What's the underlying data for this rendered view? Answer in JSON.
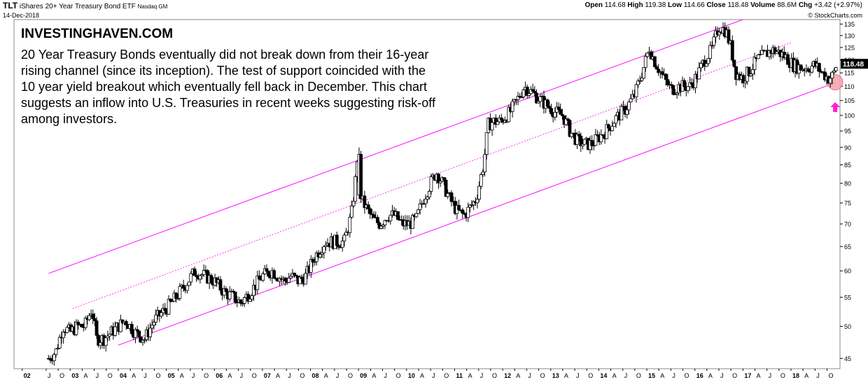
{
  "header": {
    "symbol": "TLT",
    "name": "iShares 20+ Year Treasury Bond ETF",
    "exchange": "Nasdaq GM",
    "date": "14-Dec-2018",
    "open_label": "Open",
    "open": "114.68",
    "high_label": "High",
    "high": "119.38",
    "low_label": "Low",
    "low": "114.66",
    "close_label": "Close",
    "close": "118.48",
    "volume_label": "Volume",
    "volume": "88.6M",
    "chg_label": "Chg",
    "chg": "+3.42 (+2.97%)",
    "copyright": "© StockCharts.com"
  },
  "annotation": {
    "brand": "INVESTINGHAVEN.COM",
    "text": "20 Year Treasury Bonds eventually did not break down from their 16-year rising channel (since its inception). The test of support coincided with the 10 year yield breakout which eventually fell back in December. This chart suggests an inflow into U.S. Treasuries in recent weeks suggesting risk-off among investors."
  },
  "colors": {
    "channel": "#ff33ff",
    "highlight": "#f4a0a8",
    "arrow": "#ff1fcf",
    "price_badge": "#000000"
  },
  "chart_data": {
    "type": "candlestick",
    "y_scale": "log",
    "ylim": [
      43.5,
      137
    ],
    "xlim": [
      2002.55,
      2019.05
    ],
    "y_ticks": [
      45,
      50,
      55,
      60,
      65,
      70,
      75,
      80,
      85,
      90,
      95,
      100,
      105,
      110,
      115,
      120,
      125,
      130,
      135
    ],
    "x_ticks": [
      {
        "label": "02",
        "t": 2002.0
      },
      {
        "label": "J",
        "t": 2002.5
      },
      {
        "label": "O",
        "t": 2002.75
      },
      {
        "label": "03",
        "t": 2003.0
      },
      {
        "label": "A",
        "t": 2003.25
      },
      {
        "label": "J",
        "t": 2003.5
      },
      {
        "label": "O",
        "t": 2003.75
      },
      {
        "label": "04",
        "t": 2004.0
      },
      {
        "label": "A",
        "t": 2004.25
      },
      {
        "label": "J",
        "t": 2004.5
      },
      {
        "label": "O",
        "t": 2004.75
      },
      {
        "label": "05",
        "t": 2005.0
      },
      {
        "label": "A",
        "t": 2005.25
      },
      {
        "label": "J",
        "t": 2005.5
      },
      {
        "label": "O",
        "t": 2005.75
      },
      {
        "label": "06",
        "t": 2006.0
      },
      {
        "label": "A",
        "t": 2006.25
      },
      {
        "label": "J",
        "t": 2006.5
      },
      {
        "label": "O",
        "t": 2006.75
      },
      {
        "label": "07",
        "t": 2007.0
      },
      {
        "label": "A",
        "t": 2007.25
      },
      {
        "label": "J",
        "t": 2007.5
      },
      {
        "label": "O",
        "t": 2007.75
      },
      {
        "label": "08",
        "t": 2008.0
      },
      {
        "label": "A",
        "t": 2008.25
      },
      {
        "label": "J",
        "t": 2008.5
      },
      {
        "label": "O",
        "t": 2008.75
      },
      {
        "label": "09",
        "t": 2009.0
      },
      {
        "label": "A",
        "t": 2009.25
      },
      {
        "label": "J",
        "t": 2009.5
      },
      {
        "label": "O",
        "t": 2009.75
      },
      {
        "label": "10",
        "t": 2010.0
      },
      {
        "label": "A",
        "t": 2010.25
      },
      {
        "label": "J",
        "t": 2010.5
      },
      {
        "label": "O",
        "t": 2010.75
      },
      {
        "label": "11",
        "t": 2011.0
      },
      {
        "label": "A",
        "t": 2011.25
      },
      {
        "label": "J",
        "t": 2011.5
      },
      {
        "label": "O",
        "t": 2011.75
      },
      {
        "label": "12",
        "t": 2012.0
      },
      {
        "label": "A",
        "t": 2012.25
      },
      {
        "label": "J",
        "t": 2012.5
      },
      {
        "label": "O",
        "t": 2012.75
      },
      {
        "label": "13",
        "t": 2013.0
      },
      {
        "label": "A",
        "t": 2013.25
      },
      {
        "label": "J",
        "t": 2013.5
      },
      {
        "label": "O",
        "t": 2013.75
      },
      {
        "label": "14",
        "t": 2014.0
      },
      {
        "label": "A",
        "t": 2014.25
      },
      {
        "label": "J",
        "t": 2014.5
      },
      {
        "label": "O",
        "t": 2014.75
      },
      {
        "label": "15",
        "t": 2015.0
      },
      {
        "label": "A",
        "t": 2015.25
      },
      {
        "label": "J",
        "t": 2015.5
      },
      {
        "label": "O",
        "t": 2015.75
      },
      {
        "label": "16",
        "t": 2016.0
      },
      {
        "label": "A",
        "t": 2016.25
      },
      {
        "label": "J",
        "t": 2016.5
      },
      {
        "label": "O",
        "t": 2016.75
      },
      {
        "label": "17",
        "t": 2017.0
      },
      {
        "label": "A",
        "t": 2017.25
      },
      {
        "label": "J",
        "t": 2017.5
      },
      {
        "label": "O",
        "t": 2017.75
      },
      {
        "label": "18",
        "t": 2018.0
      },
      {
        "label": "A",
        "t": 2018.25
      },
      {
        "label": "J",
        "t": 2018.5
      },
      {
        "label": "O",
        "t": 2018.75
      }
    ],
    "price_anchors": [
      [
        2002.55,
        45
      ],
      [
        2002.7,
        46
      ],
      [
        2002.85,
        50
      ],
      [
        2003.0,
        49
      ],
      [
        2003.15,
        50
      ],
      [
        2003.3,
        50
      ],
      [
        2003.45,
        53
      ],
      [
        2003.55,
        48
      ],
      [
        2003.7,
        48
      ],
      [
        2003.85,
        49
      ],
      [
        2004.0,
        50
      ],
      [
        2004.15,
        51
      ],
      [
        2004.35,
        49
      ],
      [
        2004.55,
        48
      ],
      [
        2004.75,
        51
      ],
      [
        2005.0,
        53
      ],
      [
        2005.2,
        55
      ],
      [
        2005.45,
        58
      ],
      [
        2005.6,
        60
      ],
      [
        2005.8,
        59
      ],
      [
        2006.0,
        58
      ],
      [
        2006.2,
        56
      ],
      [
        2006.4,
        55
      ],
      [
        2006.55,
        54
      ],
      [
        2006.75,
        56
      ],
      [
        2007.0,
        59
      ],
      [
        2007.2,
        60
      ],
      [
        2007.45,
        58
      ],
      [
        2007.6,
        59
      ],
      [
        2007.75,
        58
      ],
      [
        2007.9,
        59
      ],
      [
        2008.1,
        63
      ],
      [
        2008.3,
        66
      ],
      [
        2008.5,
        66
      ],
      [
        2008.7,
        66
      ],
      [
        2008.85,
        72
      ],
      [
        2008.93,
        80
      ],
      [
        2008.98,
        88
      ],
      [
        2009.05,
        76
      ],
      [
        2009.15,
        74
      ],
      [
        2009.3,
        71
      ],
      [
        2009.45,
        70
      ],
      [
        2009.6,
        72
      ],
      [
        2009.75,
        72
      ],
      [
        2009.9,
        70
      ],
      [
        2010.05,
        70
      ],
      [
        2010.2,
        71
      ],
      [
        2010.35,
        76
      ],
      [
        2010.5,
        80
      ],
      [
        2010.62,
        83
      ],
      [
        2010.75,
        80
      ],
      [
        2010.9,
        76
      ],
      [
        2011.05,
        73
      ],
      [
        2011.2,
        72
      ],
      [
        2011.45,
        76
      ],
      [
        2011.6,
        85
      ],
      [
        2011.7,
        97
      ],
      [
        2011.8,
        98
      ],
      [
        2011.95,
        98
      ],
      [
        2012.15,
        101
      ],
      [
        2012.3,
        105
      ],
      [
        2012.45,
        110
      ],
      [
        2012.6,
        108
      ],
      [
        2012.8,
        105
      ],
      [
        2012.95,
        103
      ],
      [
        2013.1,
        101
      ],
      [
        2013.25,
        100
      ],
      [
        2013.4,
        95
      ],
      [
        2013.55,
        92
      ],
      [
        2013.7,
        91
      ],
      [
        2013.85,
        91
      ],
      [
        2014.0,
        93
      ],
      [
        2014.15,
        95
      ],
      [
        2014.35,
        99
      ],
      [
        2014.55,
        102
      ],
      [
        2014.75,
        107
      ],
      [
        2014.95,
        118
      ],
      [
        2015.05,
        125
      ],
      [
        2015.15,
        120
      ],
      [
        2015.35,
        113
      ],
      [
        2015.5,
        109
      ],
      [
        2015.7,
        110
      ],
      [
        2015.9,
        110
      ],
      [
        2016.05,
        114
      ],
      [
        2016.2,
        120
      ],
      [
        2016.35,
        124
      ],
      [
        2016.5,
        134
      ],
      [
        2016.65,
        132
      ],
      [
        2016.75,
        125
      ],
      [
        2016.85,
        115
      ],
      [
        2017.0,
        113
      ],
      [
        2017.15,
        116
      ],
      [
        2017.3,
        120
      ],
      [
        2017.45,
        122
      ],
      [
        2017.6,
        124
      ],
      [
        2017.75,
        123
      ],
      [
        2017.9,
        121
      ],
      [
        2018.05,
        118
      ],
      [
        2018.2,
        117
      ],
      [
        2018.35,
        117
      ],
      [
        2018.5,
        118
      ],
      [
        2018.65,
        115
      ],
      [
        2018.78,
        113
      ],
      [
        2018.88,
        114
      ],
      [
        2018.95,
        118.48
      ]
    ],
    "special_candles": [
      {
        "t": 2009.0,
        "open": 77,
        "high": 90,
        "low": 76,
        "close": 88
      },
      {
        "t": 2009.05,
        "open": 88,
        "high": 89,
        "low": 75,
        "close": 76
      }
    ],
    "channel": {
      "upper": [
        [
          2002.55,
          59.5
        ],
        [
          2017.0,
          137
        ]
      ],
      "lower": [
        [
          2004.0,
          47
        ],
        [
          2018.95,
          111.5
        ]
      ],
      "middle": [
        [
          2003.05,
          53
        ],
        [
          2018.0,
          127
        ]
      ]
    },
    "last_price": "118.48",
    "highlight": {
      "t": 2018.92,
      "price": 111.5
    },
    "arrow": {
      "t": 2018.92,
      "price": 103
    }
  }
}
